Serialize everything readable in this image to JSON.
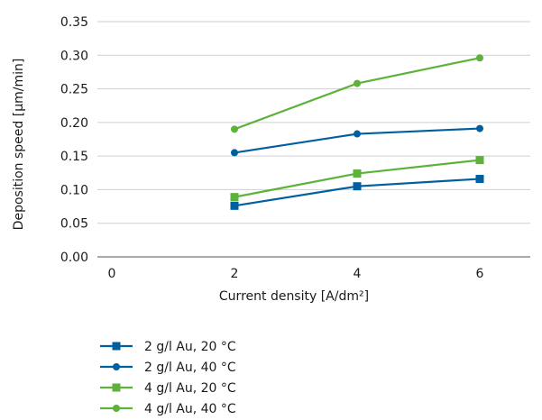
{
  "chart_data": {
    "type": "line",
    "xlabel": "Current density [A/dm²]",
    "ylabel": "Deposition speed [µm/min]",
    "xlim": [
      0,
      7
    ],
    "ylim": [
      0,
      0.35
    ],
    "x_ticks": [
      0,
      2,
      4,
      6
    ],
    "y_ticks": [
      0.0,
      0.05,
      0.1,
      0.15,
      0.2,
      0.25,
      0.3,
      0.35
    ],
    "y_tick_labels": [
      "0.00",
      "0.05",
      "0.10",
      "0.15",
      "0.20",
      "0.25",
      "0.30",
      "0.35"
    ],
    "grid": "horizontal",
    "legend_position": "bottom",
    "series": [
      {
        "name": "2 g/l Au, 20 °C",
        "x": [
          2,
          4,
          6
        ],
        "values": [
          0.076,
          0.105,
          0.116
        ],
        "color": "#005f9e",
        "marker": "square"
      },
      {
        "name": "2 g/l Au, 40 °C",
        "x": [
          2,
          4,
          6
        ],
        "values": [
          0.155,
          0.183,
          0.191
        ],
        "color": "#005f9e",
        "marker": "circle"
      },
      {
        "name": "4 g/l Au, 20 °C",
        "x": [
          2,
          4,
          6
        ],
        "values": [
          0.089,
          0.124,
          0.144
        ],
        "color": "#5db23b",
        "marker": "square"
      },
      {
        "name": "4 g/l Au, 40 °C",
        "x": [
          2,
          4,
          6
        ],
        "values": [
          0.19,
          0.258,
          0.296
        ],
        "color": "#5db23b",
        "marker": "circle"
      }
    ]
  }
}
